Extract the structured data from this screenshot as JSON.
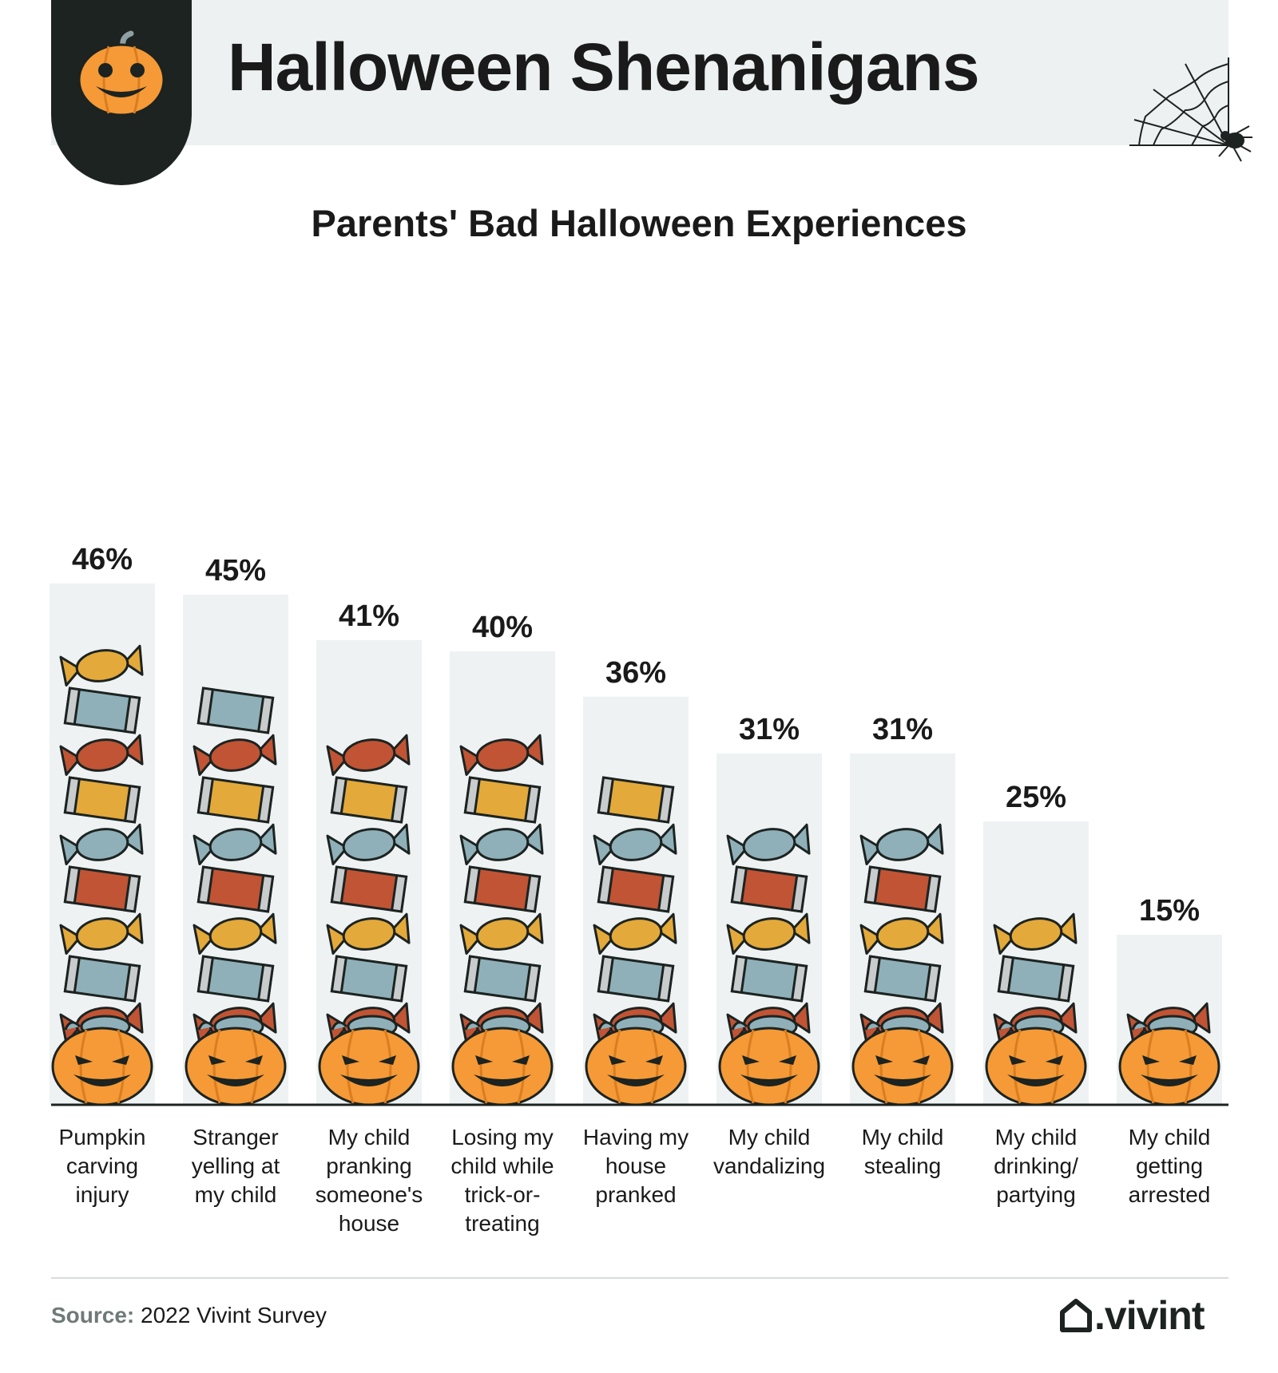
{
  "header": {
    "title": "Halloween Shenanigans",
    "logo_icon": "jack-o-lantern-icon",
    "decoration_icon": "spiderweb-icon"
  },
  "chart_data": {
    "type": "bar",
    "title": "Parents' Bad Halloween Experiences",
    "xlabel": "",
    "ylabel": "",
    "ylim": [
      0,
      46
    ],
    "grid": false,
    "categories": [
      "Pumpkin carving injury",
      "Stranger yelling at my child",
      "My child pranking someone's house",
      "Losing my child while trick-or-treating",
      "Having my house pranked",
      "My child vandalizing",
      "My child stealing",
      "My child drinking/ partying",
      "My child getting arrested"
    ],
    "category_lines": [
      [
        "Pumpkin",
        "carving",
        "injury"
      ],
      [
        "Stranger",
        "yelling at",
        "my child"
      ],
      [
        "My child",
        "pranking",
        "someone's",
        "house"
      ],
      [
        "Losing my",
        "child while",
        "trick-or-",
        "treating"
      ],
      [
        "Having my",
        "house",
        "pranked"
      ],
      [
        "My child",
        "vandalizing"
      ],
      [
        "My child",
        "stealing"
      ],
      [
        "My child",
        "drinking/",
        "partying"
      ],
      [
        "My child",
        "getting",
        "arrested"
      ]
    ],
    "values": [
      46,
      45,
      41,
      40,
      36,
      31,
      31,
      25,
      15
    ],
    "value_labels": [
      "46%",
      "45%",
      "41%",
      "40%",
      "36%",
      "31%",
      "31%",
      "25%",
      "15%"
    ],
    "mark_icons": [
      "candy-bar-icon",
      "wrapped-candy-icon",
      "jack-o-lantern-bucket-icon"
    ]
  },
  "colors": {
    "pumpkin_orange": "#f59a36",
    "candy_blue": "#8fb0b9",
    "candy_red": "#c05434",
    "candy_yellow": "#e3a93a",
    "dark": "#1c2321",
    "column_bg": "#eef2f3",
    "header_bg": "#edf1f2",
    "source_label": "#6f7a78"
  },
  "footer": {
    "source_label": "Source:",
    "source_text": " 2022 Vivint Survey",
    "brand": ".vivint",
    "brand_icon": "house-icon"
  }
}
